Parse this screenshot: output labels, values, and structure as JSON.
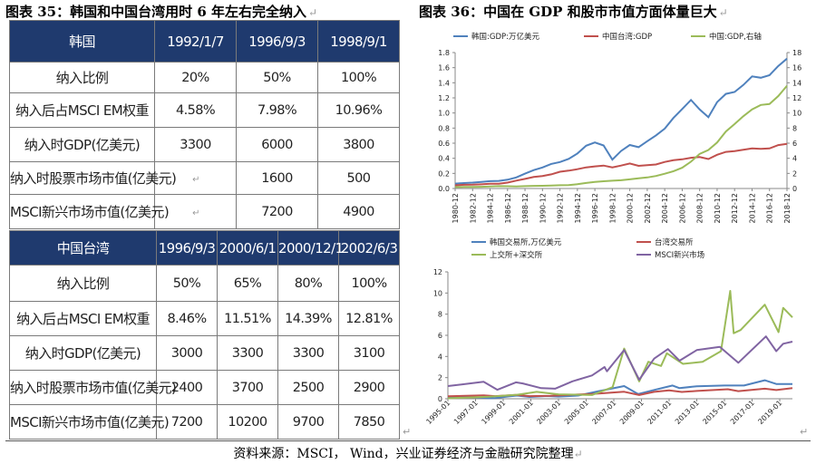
{
  "fig35": {
    "title": "图表 35：韩国和中国台湾用时 6 年左右完全纳入"
  },
  "fig36": {
    "title": "图表 36：中国在 GDP 和股市市值方面体量巨大"
  },
  "return_mark": "↵",
  "korea_table": {
    "header": [
      "韩国",
      "1992/1/7",
      "1996/9/3",
      "1998/9/1"
    ],
    "rows": [
      [
        "纳入比例",
        "20%",
        "50%",
        "100%"
      ],
      [
        "纳入后占MSCI EM权重",
        "4.58%",
        "7.98%",
        "10.96%"
      ],
      [
        "纳入时GDP(亿美元)",
        "3300",
        "6000",
        "3800"
      ],
      [
        "纳入时股票市场市值(亿美元)",
        "",
        "1600",
        "500"
      ],
      [
        "MSCI新兴市场市值(亿美元)",
        "",
        "7200",
        "4900"
      ]
    ]
  },
  "taiwan_table": {
    "header": [
      "中国台湾",
      "1996/9/3",
      "2000/6/1",
      "2000/12/1",
      "2002/6/3"
    ],
    "rows": [
      [
        "纳入比例",
        "50%",
        "65%",
        "80%",
        "100%"
      ],
      [
        "纳入后占MSCI EM权重",
        "8.46%",
        "11.51%",
        "14.39%",
        "12.81%"
      ],
      [
        "纳入时GDP(亿美元)",
        "3000",
        "3300",
        "3300",
        "3100"
      ],
      [
        "纳入时股票市场市值(亿美元)",
        "2400",
        "3700",
        "2500",
        "2900"
      ],
      [
        "MSCI新兴市场市值(亿美元)",
        "7200",
        "10200",
        "9700",
        "7850"
      ]
    ]
  },
  "source": "资料来源：MSCI， Wind，兴业证券经济与金融研究院整理",
  "chart_data": [
    {
      "type": "line",
      "x": [
        "1980-12",
        "1981-12",
        "1982-12",
        "1983-12",
        "1984-12",
        "1985-12",
        "1986-12",
        "1987-12",
        "1988-12",
        "1989-12",
        "1990-12",
        "1991-12",
        "1992-12",
        "1993-12",
        "1994-12",
        "1995-12",
        "1996-12",
        "1997-12",
        "1998-12",
        "1999-12",
        "2000-12",
        "2001-12",
        "2002-12",
        "2003-12",
        "2004-12",
        "2005-12",
        "2006-12",
        "2007-12",
        "2008-12",
        "2009-12",
        "2010-12",
        "2011-12",
        "2012-12",
        "2013-12",
        "2014-12",
        "2015-12",
        "2016-12",
        "2017-12",
        "2018-12"
      ],
      "x_tick_labels": [
        "1980-12",
        "1982-12",
        "1984-12",
        "1986-12",
        "1988-12",
        "1990-12",
        "1992-12",
        "1994-12",
        "1996-12",
        "1998-12",
        "2000-12",
        "2002-12",
        "2004-12",
        "2006-12",
        "2008-12",
        "2010-12",
        "2012-12",
        "2014-12",
        "2016-12",
        "2018-12"
      ],
      "series": [
        {
          "name": "韩国:GDP:万亿美元",
          "axis": "left",
          "color": "#4f81bd",
          "values": [
            0.065,
            0.072,
            0.078,
            0.088,
            0.097,
            0.101,
            0.116,
            0.147,
            0.197,
            0.244,
            0.279,
            0.325,
            0.35,
            0.393,
            0.463,
            0.566,
            0.61,
            0.57,
            0.383,
            0.497,
            0.576,
            0.547,
            0.627,
            0.703,
            0.793,
            0.935,
            1.053,
            1.172,
            1.047,
            0.944,
            1.144,
            1.253,
            1.278,
            1.37,
            1.484,
            1.466,
            1.5,
            1.623,
            1.72
          ]
        },
        {
          "name": "中国台湾:GDP",
          "axis": "left",
          "color": "#c0504d",
          "values": [
            0.042,
            0.049,
            0.05,
            0.055,
            0.062,
            0.064,
            0.078,
            0.105,
            0.127,
            0.153,
            0.166,
            0.187,
            0.222,
            0.236,
            0.256,
            0.28,
            0.293,
            0.304,
            0.28,
            0.304,
            0.331,
            0.3,
            0.308,
            0.318,
            0.352,
            0.375,
            0.387,
            0.407,
            0.416,
            0.39,
            0.446,
            0.485,
            0.496,
            0.512,
            0.53,
            0.525,
            0.531,
            0.575,
            0.59
          ]
        },
        {
          "name": "中国:GDP,右轴",
          "axis": "right",
          "color": "#9bbb59",
          "values": [
            0.19,
            0.2,
            0.21,
            0.23,
            0.26,
            0.31,
            0.3,
            0.27,
            0.31,
            0.35,
            0.36,
            0.38,
            0.43,
            0.44,
            0.56,
            0.73,
            0.86,
            0.96,
            1.03,
            1.09,
            1.21,
            1.34,
            1.47,
            1.66,
            1.96,
            2.29,
            2.75,
            3.55,
            4.59,
            5.1,
            6.09,
            7.55,
            8.53,
            9.57,
            10.48,
            11.06,
            11.19,
            12.24,
            13.61
          ]
        }
      ],
      "ylim_left": [
        0,
        1.8
      ],
      "yticks_left": [
        "0.0",
        "0.2",
        "0.4",
        "0.6",
        "0.8",
        "1.0",
        "1.2",
        "1.4",
        "1.6",
        "1.8"
      ],
      "ylim_right": [
        0,
        18
      ],
      "yticks_right": [
        "0",
        "2",
        "4",
        "6",
        "8",
        "10",
        "12",
        "14",
        "16",
        "18"
      ],
      "legend": "top",
      "grid": false
    },
    {
      "type": "line",
      "x_tick_labels": [
        "1995-01",
        "1997-01",
        "1999-01",
        "2001-01",
        "2003-01",
        "2005-01",
        "2007-01",
        "2009-01",
        "2011-01",
        "2013-01",
        "2015-01",
        "2017-01",
        "2019-01"
      ],
      "x_range": [
        "1995-01",
        "2019-12"
      ],
      "series": [
        {
          "name": "韩国交易所,万亿美元",
          "color": "#4f81bd",
          "points": [
            [
              "1995-01",
              0.18
            ],
            [
              "1996-06",
              0.15
            ],
            [
              "1997-06",
              0.11
            ],
            [
              "1997-12",
              0.05
            ],
            [
              "1998-06",
              0.06
            ],
            [
              "1999-06",
              0.22
            ],
            [
              "2000-01",
              0.3
            ],
            [
              "2000-12",
              0.17
            ],
            [
              "2002-03",
              0.26
            ],
            [
              "2003-01",
              0.21
            ],
            [
              "2004-06",
              0.3
            ],
            [
              "2005-12",
              0.72
            ],
            [
              "2007-10",
              1.2
            ],
            [
              "2008-10",
              0.45
            ],
            [
              "2009-12",
              0.83
            ],
            [
              "2011-04",
              1.25
            ],
            [
              "2011-10",
              1.0
            ],
            [
              "2013-01",
              1.18
            ],
            [
              "2015-01",
              1.25
            ],
            [
              "2016-06",
              1.25
            ],
            [
              "2017-12",
              1.75
            ],
            [
              "2018-10",
              1.4
            ],
            [
              "2019-12",
              1.4
            ]
          ]
        },
        {
          "name": "台湾交易所",
          "color": "#c0504d",
          "points": [
            [
              "1995-01",
              0.24
            ],
            [
              "1997-08",
              0.33
            ],
            [
              "1998-06",
              0.25
            ],
            [
              "1999-12",
              0.37
            ],
            [
              "2000-12",
              0.25
            ],
            [
              "2002-06",
              0.27
            ],
            [
              "2003-12",
              0.38
            ],
            [
              "2005-06",
              0.45
            ],
            [
              "2007-10",
              0.66
            ],
            [
              "2008-11",
              0.35
            ],
            [
              "2009-12",
              0.65
            ],
            [
              "2011-01",
              0.8
            ],
            [
              "2011-12",
              0.64
            ],
            [
              "2013-01",
              0.74
            ],
            [
              "2015-04",
              0.9
            ],
            [
              "2016-01",
              0.72
            ],
            [
              "2017-12",
              0.95
            ],
            [
              "2018-10",
              0.82
            ],
            [
              "2019-12",
              1.0
            ]
          ]
        },
        {
          "name": "上交所+深交所",
          "color": "#9bbb59",
          "points": [
            [
              "1995-01",
              0.04
            ],
            [
              "1998-01",
              0.2
            ],
            [
              "2000-01",
              0.38
            ],
            [
              "2001-06",
              0.65
            ],
            [
              "2003-01",
              0.42
            ],
            [
              "2005-06",
              0.35
            ],
            [
              "2006-12",
              1.1
            ],
            [
              "2007-10",
              4.75
            ],
            [
              "2008-11",
              1.65
            ],
            [
              "2009-07",
              3.5
            ],
            [
              "2010-06",
              3.1
            ],
            [
              "2010-11",
              4.3
            ],
            [
              "2012-01",
              3.3
            ],
            [
              "2013-06",
              3.5
            ],
            [
              "2014-10",
              4.5
            ],
            [
              "2015-06",
              10.2
            ],
            [
              "2015-09",
              6.2
            ],
            [
              "2016-03",
              6.5
            ],
            [
              "2017-12",
              8.9
            ],
            [
              "2018-12",
              6.3
            ],
            [
              "2019-04",
              8.6
            ],
            [
              "2019-12",
              7.7
            ]
          ]
        },
        {
          "name": "MSCI新兴市场",
          "color": "#8064a2",
          "points": [
            [
              "1995-01",
              1.2
            ],
            [
              "1997-08",
              1.6
            ],
            [
              "1998-08",
              0.85
            ],
            [
              "1999-12",
              1.55
            ],
            [
              "2000-06",
              1.45
            ],
            [
              "2001-10",
              1.0
            ],
            [
              "2002-10",
              0.95
            ],
            [
              "2004-01",
              1.65
            ],
            [
              "2005-06",
              2.2
            ],
            [
              "2006-05",
              3.0
            ],
            [
              "2006-07",
              2.6
            ],
            [
              "2007-10",
              4.6
            ],
            [
              "2008-11",
              1.8
            ],
            [
              "2009-12",
              3.8
            ],
            [
              "2010-12",
              4.7
            ],
            [
              "2011-10",
              3.6
            ],
            [
              "2013-01",
              4.6
            ],
            [
              "2014-09",
              4.9
            ],
            [
              "2016-01",
              3.4
            ],
            [
              "2018-01",
              5.9
            ],
            [
              "2018-10",
              4.5
            ],
            [
              "2019-04",
              5.2
            ],
            [
              "2019-12",
              5.4
            ]
          ]
        }
      ],
      "ylim": [
        0,
        12
      ],
      "yticks": [
        "0",
        "2",
        "4",
        "6",
        "8",
        "10",
        "12"
      ],
      "legend": "top",
      "grid": false
    }
  ]
}
